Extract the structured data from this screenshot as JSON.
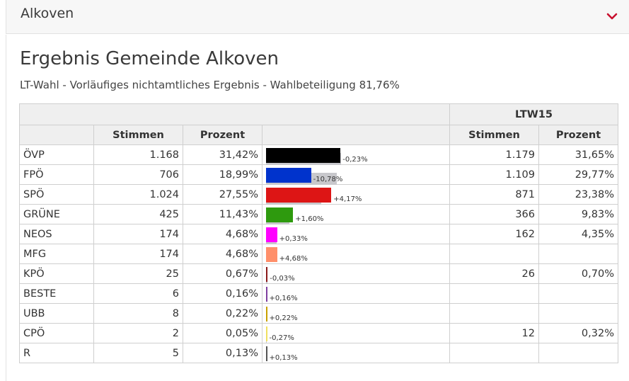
{
  "header": {
    "title": "Alkoven"
  },
  "page": {
    "title": "Ergebnis Gemeinde Alkoven",
    "subtitle": "LT-Wahl - Vorläufiges nichtamtliches Ergebnis - Wahlbeteiligung 81,76%"
  },
  "table": {
    "group_header": "LTW15",
    "col_stimmen": "Stimmen",
    "col_prozent": "Prozent",
    "rows": [
      {
        "party": "ÖVP",
        "stimmen": "1.168",
        "prozent": "31,42%",
        "diff": "-0,23%",
        "prev_stimmen": "1.179",
        "prev_prozent": "31,65%",
        "color": "#000000",
        "pct": 31.42,
        "prev_pct": 31.65
      },
      {
        "party": "FPÖ",
        "stimmen": "706",
        "prozent": "18,99%",
        "diff": "-10,78%",
        "prev_stimmen": "1.109",
        "prev_prozent": "29,77%",
        "color": "#0033cc",
        "pct": 18.99,
        "prev_pct": 29.77
      },
      {
        "party": "SPÖ",
        "stimmen": "1.024",
        "prozent": "27,55%",
        "diff": "+4,17%",
        "prev_stimmen": "871",
        "prev_prozent": "23,38%",
        "color": "#dd1515",
        "pct": 27.55,
        "prev_pct": 23.38
      },
      {
        "party": "GRÜNE",
        "stimmen": "425",
        "prozent": "11,43%",
        "diff": "+1,60%",
        "prev_stimmen": "366",
        "prev_prozent": "9,83%",
        "color": "#2e9a0e",
        "pct": 11.43,
        "prev_pct": 9.83
      },
      {
        "party": "NEOS",
        "stimmen": "174",
        "prozent": "4,68%",
        "diff": "+0,33%",
        "prev_stimmen": "162",
        "prev_prozent": "4,35%",
        "color": "#ff00ff",
        "pct": 4.68,
        "prev_pct": 4.35
      },
      {
        "party": "MFG",
        "stimmen": "174",
        "prozent": "4,68%",
        "diff": "+4,68%",
        "prev_stimmen": "",
        "prev_prozent": "",
        "color": "#ff8f6a",
        "pct": 4.68,
        "prev_pct": 0
      },
      {
        "party": "KPÖ",
        "stimmen": "25",
        "prozent": "0,67%",
        "diff": "-0,03%",
        "prev_stimmen": "26",
        "prev_prozent": "0,70%",
        "color": "#8b1a1a",
        "pct": 0.67,
        "prev_pct": 0.7
      },
      {
        "party": "BESTE",
        "stimmen": "6",
        "prozent": "0,16%",
        "diff": "+0,16%",
        "prev_stimmen": "",
        "prev_prozent": "",
        "color": "#7f3f9f",
        "pct": 0.16,
        "prev_pct": 0
      },
      {
        "party": "UBB",
        "stimmen": "8",
        "prozent": "0,22%",
        "diff": "+0,22%",
        "prev_stimmen": "",
        "prev_prozent": "",
        "color": "#c8a000",
        "pct": 0.22,
        "prev_pct": 0
      },
      {
        "party": "CPÖ",
        "stimmen": "2",
        "prozent": "0,05%",
        "diff": "-0,27%",
        "prev_stimmen": "12",
        "prev_prozent": "0,32%",
        "color": "#f0e060",
        "pct": 0.05,
        "prev_pct": 0.32
      },
      {
        "party": "R",
        "stimmen": "5",
        "prozent": "0,13%",
        "diff": "+0,13%",
        "prev_stimmen": "",
        "prev_prozent": "",
        "color": "#555555",
        "pct": 0.13,
        "prev_pct": 0
      }
    ]
  }
}
